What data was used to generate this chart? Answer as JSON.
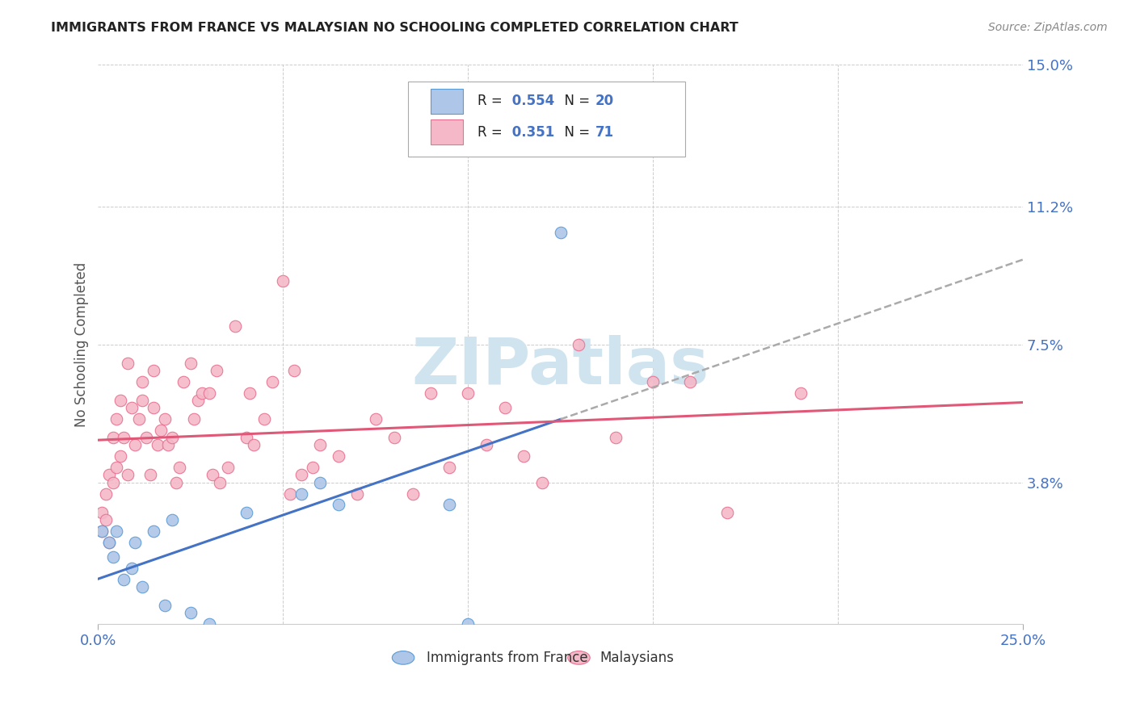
{
  "title": "IMMIGRANTS FROM FRANCE VS MALAYSIAN NO SCHOOLING COMPLETED CORRELATION CHART",
  "source": "Source: ZipAtlas.com",
  "ylabel": "No Schooling Completed",
  "xlim": [
    0.0,
    0.25
  ],
  "ylim": [
    0.0,
    0.15
  ],
  "xticks": [
    0.0,
    0.25
  ],
  "xticklabels": [
    "0.0%",
    "25.0%"
  ],
  "ytick_vals": [
    0.0,
    0.038,
    0.075,
    0.112,
    0.15
  ],
  "ytick_labels": [
    "",
    "3.8%",
    "7.5%",
    "11.2%",
    "15.0%"
  ],
  "blue_label": "Immigrants from France",
  "pink_label": "Malaysians",
  "blue_r": "0.554",
  "blue_n": "20",
  "pink_r": "0.351",
  "pink_n": "71",
  "blue_dot_color": "#aec6e8",
  "blue_edge_color": "#5b9bd5",
  "pink_dot_color": "#f4b8c8",
  "pink_edge_color": "#e87090",
  "blue_line_color": "#4472c4",
  "pink_line_color": "#e05878",
  "dashed_line_color": "#aaaaaa",
  "watermark": "ZIPatlas",
  "watermark_color": "#d0e4f0",
  "blue_x": [
    0.001,
    0.003,
    0.004,
    0.005,
    0.007,
    0.009,
    0.01,
    0.012,
    0.015,
    0.018,
    0.02,
    0.025,
    0.03,
    0.04,
    0.055,
    0.06,
    0.065,
    0.095,
    0.1,
    0.125
  ],
  "blue_y": [
    0.025,
    0.022,
    0.018,
    0.025,
    0.012,
    0.015,
    0.022,
    0.01,
    0.025,
    0.005,
    0.028,
    0.003,
    0.0,
    0.03,
    0.035,
    0.038,
    0.032,
    0.032,
    0.0,
    0.105
  ],
  "pink_x": [
    0.001,
    0.001,
    0.002,
    0.002,
    0.003,
    0.003,
    0.004,
    0.004,
    0.005,
    0.005,
    0.006,
    0.006,
    0.007,
    0.008,
    0.008,
    0.009,
    0.01,
    0.011,
    0.012,
    0.012,
    0.013,
    0.014,
    0.015,
    0.015,
    0.016,
    0.017,
    0.018,
    0.019,
    0.02,
    0.021,
    0.022,
    0.023,
    0.025,
    0.026,
    0.027,
    0.028,
    0.03,
    0.031,
    0.032,
    0.033,
    0.035,
    0.037,
    0.04,
    0.041,
    0.042,
    0.045,
    0.047,
    0.05,
    0.052,
    0.053,
    0.055,
    0.058,
    0.06,
    0.065,
    0.07,
    0.075,
    0.08,
    0.085,
    0.09,
    0.095,
    0.1,
    0.105,
    0.11,
    0.115,
    0.12,
    0.13,
    0.14,
    0.15,
    0.16,
    0.17,
    0.19
  ],
  "pink_y": [
    0.025,
    0.03,
    0.028,
    0.035,
    0.022,
    0.04,
    0.038,
    0.05,
    0.042,
    0.055,
    0.045,
    0.06,
    0.05,
    0.04,
    0.07,
    0.058,
    0.048,
    0.055,
    0.06,
    0.065,
    0.05,
    0.04,
    0.058,
    0.068,
    0.048,
    0.052,
    0.055,
    0.048,
    0.05,
    0.038,
    0.042,
    0.065,
    0.07,
    0.055,
    0.06,
    0.062,
    0.062,
    0.04,
    0.068,
    0.038,
    0.042,
    0.08,
    0.05,
    0.062,
    0.048,
    0.055,
    0.065,
    0.092,
    0.035,
    0.068,
    0.04,
    0.042,
    0.048,
    0.045,
    0.035,
    0.055,
    0.05,
    0.035,
    0.062,
    0.042,
    0.062,
    0.048,
    0.058,
    0.045,
    0.038,
    0.075,
    0.05,
    0.065,
    0.065,
    0.03,
    0.062
  ],
  "blue_line_x0": 0.0,
  "blue_line_x_solid_end": 0.125,
  "blue_line_x1": 0.25,
  "pink_line_x0": 0.0,
  "pink_line_x1": 0.25,
  "blue_intercept": -0.012,
  "blue_slope": 0.46,
  "pink_intercept": 0.024,
  "pink_slope": 0.204
}
